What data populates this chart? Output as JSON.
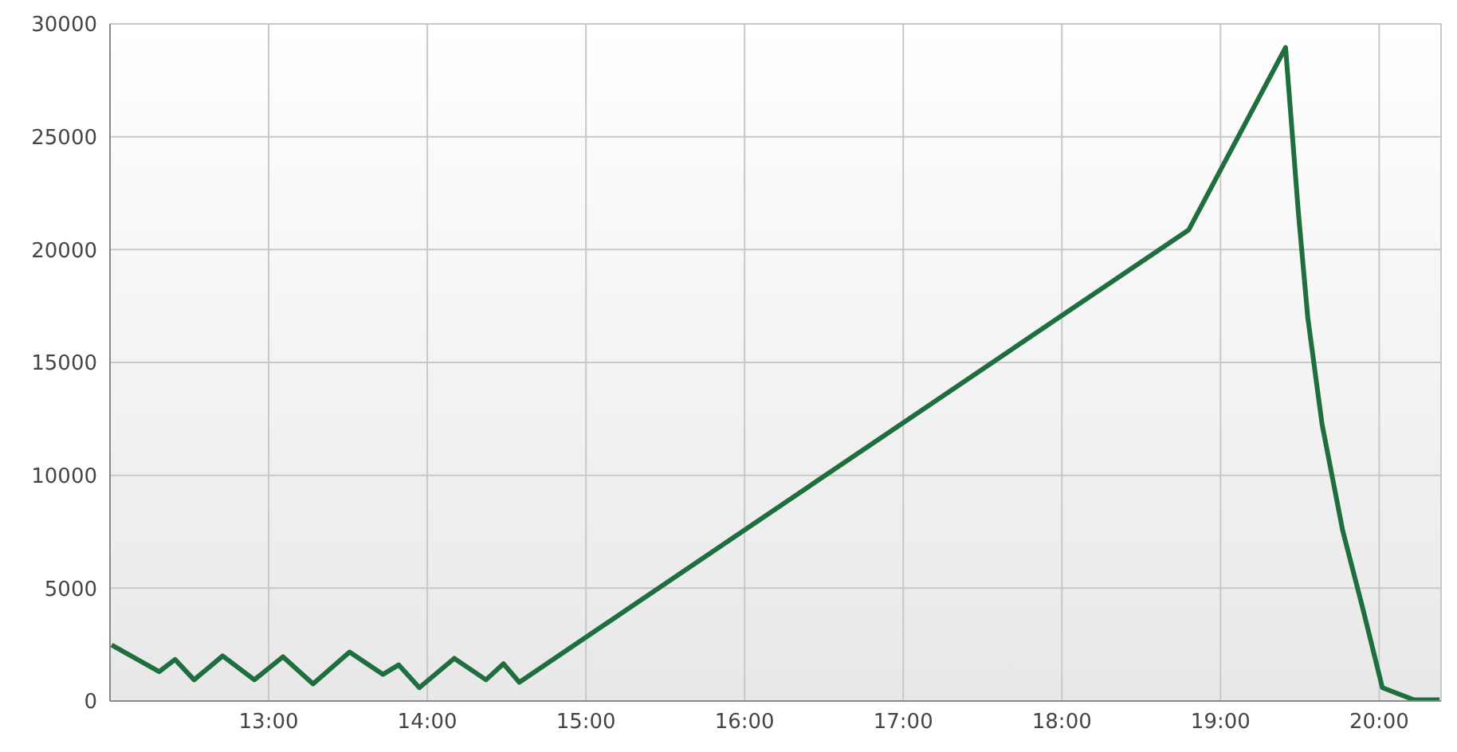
{
  "chart_data": {
    "type": "line",
    "x": [
      12.01,
      12.31,
      12.41,
      12.53,
      12.71,
      12.91,
      13.09,
      13.28,
      13.51,
      13.72,
      13.82,
      13.95,
      14.17,
      14.37,
      14.48,
      14.58,
      18.8,
      19.41,
      19.49,
      19.55,
      19.64,
      19.77,
      19.9,
      20.02,
      20.22,
      20.38
    ],
    "series": [
      {
        "color": "#1e6e3e",
        "values": [
          2480,
          1300,
          1840,
          940,
          2000,
          940,
          1960,
          760,
          2170,
          1180,
          1600,
          590,
          1890,
          940,
          1650,
          830,
          20880,
          28950,
          21700,
          16990,
          12260,
          7550,
          4010,
          590,
          50,
          50
        ]
      }
    ],
    "xlim": [
      12,
      20.39
    ],
    "xticks": [
      {
        "value": 13,
        "label": "13:00"
      },
      {
        "value": 14,
        "label": "14:00"
      },
      {
        "value": 15,
        "label": "15:00"
      },
      {
        "value": 16,
        "label": "16:00"
      },
      {
        "value": 17,
        "label": "17:00"
      },
      {
        "value": 18,
        "label": "18:00"
      },
      {
        "value": 19,
        "label": "19:00"
      },
      {
        "value": 20,
        "label": "20:00"
      }
    ],
    "ylim": [
      0,
      30000
    ],
    "yticks": [
      0,
      5000,
      10000,
      15000,
      20000,
      25000,
      30000
    ],
    "grid": true,
    "marker": "none",
    "line_style": "solid",
    "legend": false
  }
}
